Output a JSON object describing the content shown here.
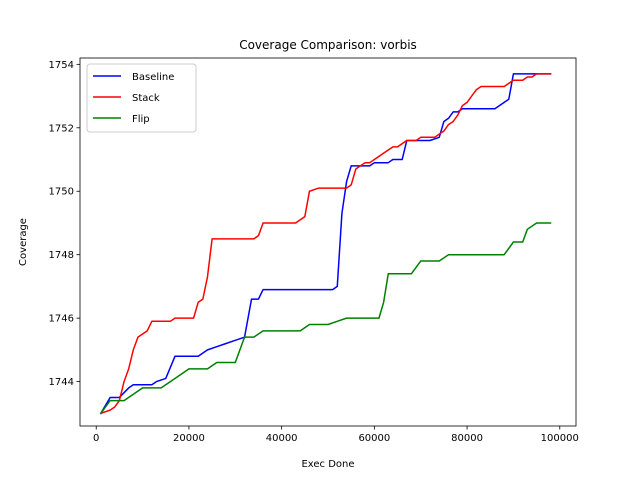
{
  "chart_data": {
    "type": "line",
    "title": "Coverage Comparison: vorbis",
    "xlabel": "Exec Done",
    "ylabel": "Coverage",
    "xlim": [
      -3500,
      103500
    ],
    "ylim": [
      1742.6,
      1754.2
    ],
    "xticks": [
      0,
      20000,
      40000,
      60000,
      80000,
      100000
    ],
    "xtick_labels": [
      "0",
      "20000",
      "40000",
      "60000",
      "80000",
      "100000"
    ],
    "yticks": [
      1744,
      1746,
      1748,
      1750,
      1752,
      1754
    ],
    "ytick_labels": [
      "1744",
      "1746",
      "1748",
      "1750",
      "1752",
      "1754"
    ],
    "grid": false,
    "legend_position": "top-left",
    "series": [
      {
        "name": "Baseline",
        "color": "#0000ff",
        "x": [
          1000,
          3000,
          5000,
          7000,
          8000,
          10000,
          12000,
          13000,
          15000,
          17000,
          18000,
          20000,
          22000,
          24000,
          26000,
          28000,
          30000,
          32000,
          33500,
          35000,
          36000,
          38000,
          40000,
          42000,
          44000,
          46000,
          48000,
          50000,
          51000,
          52000,
          53000,
          54000,
          55000,
          56000,
          57000,
          58000,
          59000,
          60000,
          61000,
          62000,
          63000,
          64000,
          65000,
          66000,
          67000,
          68000,
          69000,
          70000,
          72000,
          74000,
          75000,
          76000,
          77000,
          78000,
          79000,
          80000,
          81000,
          82000,
          84000,
          86000,
          88000,
          89000,
          90000,
          91000,
          92000,
          94000,
          96000,
          98000
        ],
        "y": [
          1743.0,
          1743.5,
          1743.5,
          1743.8,
          1743.9,
          1743.9,
          1743.9,
          1744.0,
          1744.1,
          1744.8,
          1744.8,
          1744.8,
          1744.8,
          1745.0,
          1745.1,
          1745.2,
          1745.3,
          1745.4,
          1746.6,
          1746.6,
          1746.9,
          1746.9,
          1746.9,
          1746.9,
          1746.9,
          1746.9,
          1746.9,
          1746.9,
          1746.9,
          1747.0,
          1749.3,
          1750.3,
          1750.8,
          1750.8,
          1750.8,
          1750.8,
          1750.8,
          1750.9,
          1750.9,
          1750.9,
          1750.9,
          1751.0,
          1751.0,
          1751.0,
          1751.6,
          1751.6,
          1751.6,
          1751.6,
          1751.6,
          1751.7,
          1752.2,
          1752.3,
          1752.5,
          1752.5,
          1752.6,
          1752.6,
          1752.6,
          1752.6,
          1752.6,
          1752.6,
          1752.8,
          1752.9,
          1753.7,
          1753.7,
          1753.7,
          1753.7,
          1753.7,
          1753.7
        ]
      },
      {
        "name": "Stack",
        "color": "#ff0000",
        "x": [
          1000,
          3000,
          4000,
          5000,
          6000,
          7000,
          8000,
          9000,
          10000,
          11000,
          12000,
          13000,
          15000,
          16000,
          17000,
          19000,
          20000,
          21000,
          22000,
          23000,
          24000,
          25000,
          27000,
          29000,
          31000,
          33000,
          34000,
          35000,
          36000,
          38000,
          40000,
          42000,
          43000,
          45000,
          46000,
          48000,
          50000,
          52000,
          54000,
          55000,
          56000,
          58000,
          59000,
          60000,
          61000,
          62000,
          63000,
          64000,
          65000,
          66000,
          67000,
          68000,
          69000,
          70000,
          71000,
          72000,
          73000,
          74000,
          75000,
          76000,
          77000,
          78000,
          79000,
          80000,
          81000,
          82000,
          83000,
          84000,
          85000,
          86000,
          87000,
          88000,
          89000,
          90000,
          91000,
          92000,
          93000,
          94000,
          95000,
          96000,
          97000,
          98000
        ],
        "y": [
          1743.0,
          1743.1,
          1743.2,
          1743.4,
          1744.0,
          1744.4,
          1745.0,
          1745.4,
          1745.5,
          1745.6,
          1745.9,
          1745.9,
          1745.9,
          1745.9,
          1746.0,
          1746.0,
          1746.0,
          1746.0,
          1746.5,
          1746.6,
          1747.3,
          1748.5,
          1748.5,
          1748.5,
          1748.5,
          1748.5,
          1748.5,
          1748.6,
          1749.0,
          1749.0,
          1749.0,
          1749.0,
          1749.0,
          1749.2,
          1750.0,
          1750.1,
          1750.1,
          1750.1,
          1750.1,
          1750.2,
          1750.7,
          1750.9,
          1750.9,
          1751.0,
          1751.1,
          1751.2,
          1751.3,
          1751.4,
          1751.4,
          1751.5,
          1751.6,
          1751.6,
          1751.6,
          1751.7,
          1751.7,
          1751.7,
          1751.7,
          1751.8,
          1751.9,
          1752.1,
          1752.2,
          1752.4,
          1752.7,
          1752.8,
          1753.0,
          1753.2,
          1753.3,
          1753.3,
          1753.3,
          1753.3,
          1753.3,
          1753.3,
          1753.4,
          1753.5,
          1753.5,
          1753.5,
          1753.6,
          1753.6,
          1753.7,
          1753.7,
          1753.7,
          1753.7
        ]
      },
      {
        "name": "Flip",
        "color": "#008000",
        "x": [
          1000,
          3000,
          6000,
          8000,
          10000,
          12000,
          14000,
          16000,
          18000,
          20000,
          22000,
          24000,
          26000,
          28000,
          30000,
          32000,
          34000,
          36000,
          38000,
          40000,
          42000,
          44000,
          46000,
          48000,
          50000,
          52000,
          54000,
          56000,
          58000,
          60000,
          61000,
          62000,
          63000,
          65000,
          67000,
          68000,
          70000,
          72000,
          74000,
          76000,
          78000,
          80000,
          82000,
          84000,
          86000,
          88000,
          90000,
          92000,
          93000,
          95000,
          97000,
          98000
        ],
        "y": [
          1743.0,
          1743.4,
          1743.4,
          1743.6,
          1743.8,
          1743.8,
          1743.8,
          1744.0,
          1744.2,
          1744.4,
          1744.4,
          1744.4,
          1744.6,
          1744.6,
          1744.6,
          1745.4,
          1745.4,
          1745.6,
          1745.6,
          1745.6,
          1745.6,
          1745.6,
          1745.8,
          1745.8,
          1745.8,
          1745.9,
          1746.0,
          1746.0,
          1746.0,
          1746.0,
          1746.0,
          1746.5,
          1747.4,
          1747.4,
          1747.4,
          1747.4,
          1747.8,
          1747.8,
          1747.8,
          1748.0,
          1748.0,
          1748.0,
          1748.0,
          1748.0,
          1748.0,
          1748.0,
          1748.4,
          1748.4,
          1748.8,
          1749.0,
          1749.0,
          1749.0
        ]
      }
    ]
  }
}
